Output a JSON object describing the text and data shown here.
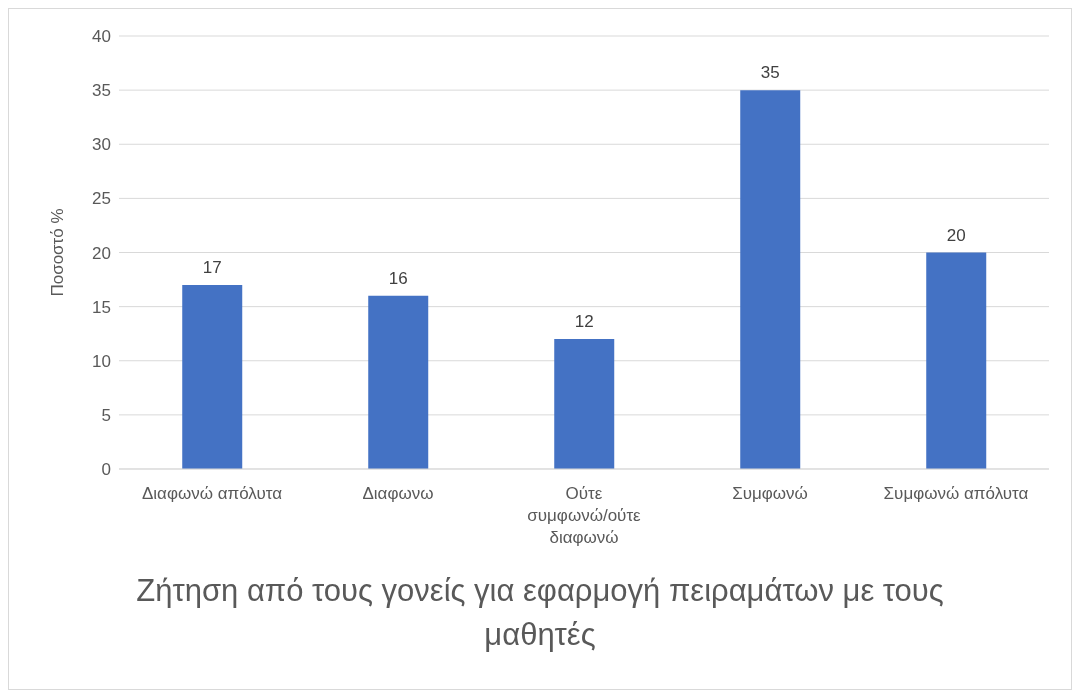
{
  "chart_data": {
    "type": "bar",
    "categories": [
      "Διαφωνώ απόλυτα",
      "Διαφωνω",
      "Ούτε συμφωνώ/ούτε διαφωνώ",
      "Συμφωνώ",
      "Συμφωνώ απόλυτα"
    ],
    "values": [
      17,
      16,
      12,
      35,
      20
    ],
    "color": "#4472c4",
    "xlabel": "Ζήτηση από τους γονείς για εφαρμογή πειραμάτων με τους μαθητές",
    "ylabel": "Ποσοστό %",
    "ylim": [
      0,
      40
    ],
    "yticks": [
      0,
      5,
      10,
      15,
      20,
      25,
      30,
      35,
      40
    ],
    "grid": "y",
    "data_labels": true
  }
}
